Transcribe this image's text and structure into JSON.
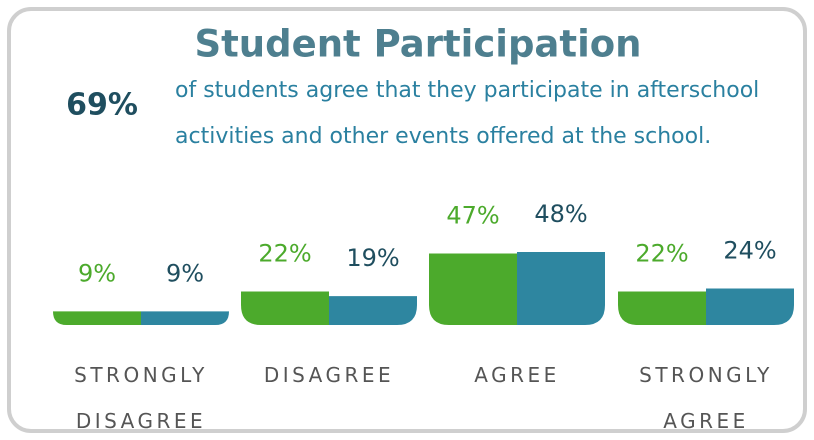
{
  "chart_data": {
    "type": "bar",
    "title": "Student Participation",
    "highlight": "69%",
    "statement": "of students agree that they participate in afterschool activities and other events offered at the school.",
    "categories": [
      "STRONGLY DISAGREE",
      "DISAGREE",
      "AGREE",
      "STRONGLY AGREE"
    ],
    "series": [
      {
        "color": "#4caa2c",
        "label_color": "#4caa2c",
        "values": [
          9,
          22,
          47,
          22
        ],
        "value_labels": [
          "9%",
          "22%",
          "47%",
          "22%"
        ]
      },
      {
        "color": "#2e86a0",
        "label_color": "#1f4e5f",
        "values": [
          9,
          19,
          48,
          24
        ],
        "value_labels": [
          "9%",
          "19%",
          "48%",
          "24%"
        ]
      }
    ]
  }
}
